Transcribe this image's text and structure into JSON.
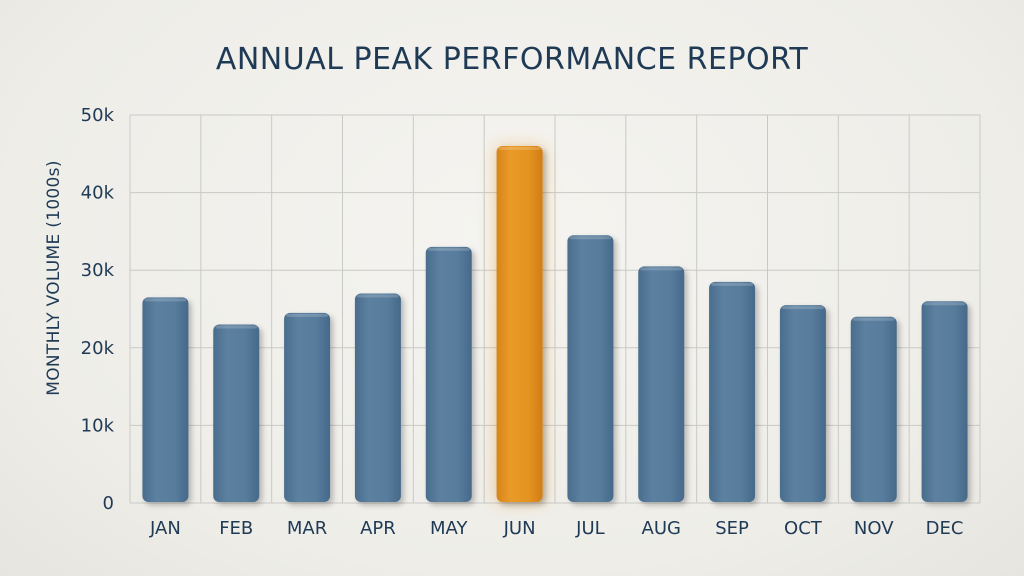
{
  "chart_data": {
    "type": "bar",
    "title": "ANNUAL PEAK PERFORMANCE REPORT",
    "xlabel": "",
    "ylabel": "MONTHLY VOLUME (1000s)",
    "categories": [
      "JAN",
      "FEB",
      "MAR",
      "APR",
      "MAY",
      "JUN",
      "JUL",
      "AUG",
      "SEP",
      "OCT",
      "NOV",
      "DEC"
    ],
    "values": [
      26.5,
      23,
      24.5,
      27,
      33,
      46,
      34.5,
      30.5,
      28.5,
      25.5,
      24,
      26
    ],
    "ylim": [
      0,
      50
    ],
    "yticks": [
      0,
      10,
      20,
      30,
      40,
      50
    ],
    "ytick_labels": [
      "0",
      "10k",
      "20k",
      "30k",
      "40k",
      "50k"
    ],
    "highlight_index": 5,
    "grid": true,
    "colors": {
      "bar": "#567a9a",
      "bar_highlight": "#e2901e",
      "grid": "#c9c9c6",
      "text": "#1f3a55"
    }
  }
}
